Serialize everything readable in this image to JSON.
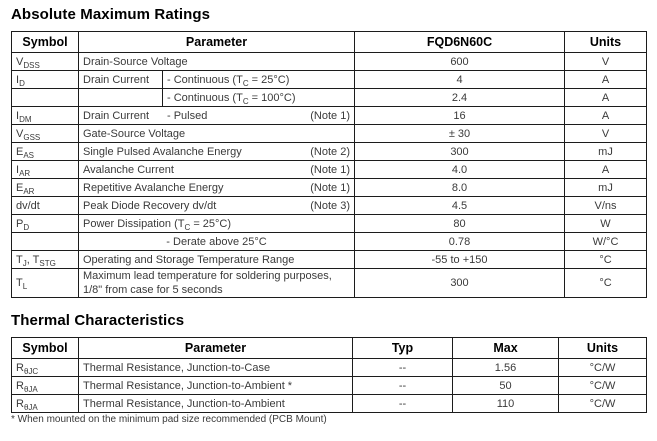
{
  "page": {
    "title1": "Absolute Maximum Ratings",
    "title2": "Thermal Characteristics",
    "footnote": "* When mounted on the minimum pad size recommended (PCB Mount)"
  },
  "amr": {
    "headers": {
      "symbol": "Symbol",
      "parameter": "Parameter",
      "value": "FQD6N60C",
      "units": "Units"
    },
    "rows": [
      {
        "symbol": "V~DSS~",
        "parameter": "Drain-Source Voltage",
        "value": "600",
        "units": "V"
      },
      {
        "symbol": "I~D~",
        "param_a": "Drain Current",
        "param_b": "- Continuous (T~C~ = 25°C)",
        "value": "4",
        "units": "A"
      },
      {
        "symbol": "",
        "param_a": "",
        "param_b": "- Continuous (T~C~ = 100°C)",
        "value": "2.4",
        "units": "A"
      },
      {
        "symbol": "I~DM~",
        "param_a": "Drain Current",
        "param_b": "- Pulsed",
        "note": "(Note 1)",
        "value": "16",
        "units": "A"
      },
      {
        "symbol": "V~GSS~",
        "parameter": "Gate-Source Voltage",
        "value": "± 30",
        "units": "V"
      },
      {
        "symbol": "E~AS~",
        "parameter": "Single Pulsed Avalanche Energy",
        "note": "(Note 2)",
        "value": "300",
        "units": "mJ"
      },
      {
        "symbol": "I~AR~",
        "parameter": "Avalanche Current",
        "note": "(Note 1)",
        "value": "4.0",
        "units": "A"
      },
      {
        "symbol": "E~AR~",
        "parameter": "Repetitive Avalanche Energy",
        "note": "(Note 1)",
        "value": "8.0",
        "units": "mJ"
      },
      {
        "symbol": "dv/dt",
        "parameter": "Peak Diode Recovery dv/dt",
        "note": "(Note 3)",
        "value": "4.5",
        "units": "V/ns"
      },
      {
        "symbol": "P~D~",
        "parameter": "Power Dissipation (T~C~ = 25°C)",
        "value": "80",
        "units": "W"
      },
      {
        "symbol": "",
        "parameter": "- Derate above 25°C",
        "value": "0.78",
        "units": "W/°C"
      },
      {
        "symbol": "T~J~, T~STG~",
        "parameter": "Operating and Storage Temperature Range",
        "value": "-55 to +150",
        "units": "°C"
      },
      {
        "symbol": "T~L~",
        "parameter": "Maximum lead temperature for soldering purposes,",
        "parameter2": "1/8\" from case for 5 seconds",
        "value": "300",
        "units": "°C"
      }
    ]
  },
  "thermal": {
    "headers": {
      "symbol": "Symbol",
      "parameter": "Parameter",
      "typ": "Typ",
      "max": "Max",
      "units": "Units"
    },
    "rows": [
      {
        "symbol": "R~θJC~",
        "parameter": "Thermal Resistance, Junction-to-Case",
        "typ": "--",
        "max": "1.56",
        "units": "°C/W"
      },
      {
        "symbol": "R~θJA~",
        "parameter": "Thermal Resistance, Junction-to-Ambient *",
        "typ": "--",
        "max": "50",
        "units": "°C/W"
      },
      {
        "symbol": "R~θJA~",
        "parameter": "Thermal Resistance, Junction-to-Ambient",
        "typ": "--",
        "max": "110",
        "units": "°C/W"
      }
    ]
  }
}
